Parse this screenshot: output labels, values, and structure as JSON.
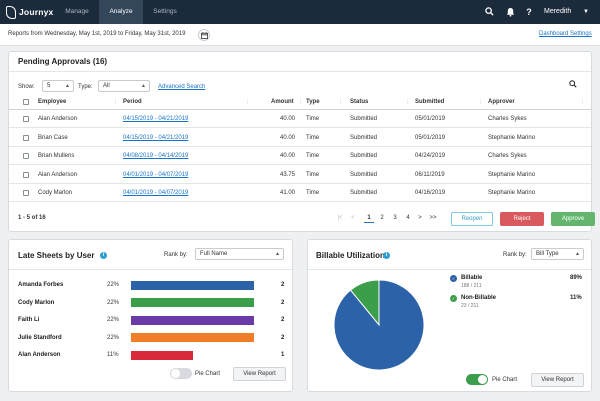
{
  "nav": {
    "brand": "Journyx",
    "items": [
      {
        "label": "Manage",
        "active": false
      },
      {
        "label": "Analyze",
        "active": true
      },
      {
        "label": "Settings",
        "active": false
      }
    ],
    "user_name": "Meredith",
    "icons": [
      "search-icon",
      "bell-icon",
      "help-icon"
    ]
  },
  "report": {
    "range_text": "Reports from Wednesday, May 1st, 2019 to Friday, May 31st, 2019",
    "dashboard_settings": "Dashboard Settings"
  },
  "pending": {
    "title": "Pending Approvals (16)",
    "show_label": "Show:",
    "show_value": "5",
    "type_label": "Type:",
    "type_value": "All",
    "advanced_search": "Advanced Search",
    "columns": [
      "Employee",
      "Period",
      "Amount",
      "Type",
      "Status",
      "Submitted",
      "Approver"
    ],
    "rows": [
      {
        "employee": "Alan Anderson",
        "period": "04/15/2019 - 04/21/2019",
        "amount": "40.00",
        "type": "Time",
        "status": "Submitted",
        "submitted": "05/01/2019",
        "approver": "Charles Sykes"
      },
      {
        "employee": "Brian Case",
        "period": "04/15/2019 - 04/21/2019",
        "amount": "40.00",
        "type": "Time",
        "status": "Submitted",
        "submitted": "05/01/2019",
        "approver": "Stephanie Marino"
      },
      {
        "employee": "Brian Mullens",
        "period": "04/08/2019 - 04/14/2019",
        "amount": "40.00",
        "type": "Time",
        "status": "Submitted",
        "submitted": "04/24/2019",
        "approver": "Charles Sykes"
      },
      {
        "employee": "Alan Anderson",
        "period": "04/01/2019 - 04/07/2019",
        "amount": "43.75",
        "type": "Time",
        "status": "Submitted",
        "submitted": "06/11/2019",
        "approver": "Stephanie Marino"
      },
      {
        "employee": "Cody Marlon",
        "period": "04/01/2019 - 04/07/2019",
        "amount": "41.00",
        "type": "Time",
        "status": "Submitted",
        "submitted": "04/16/2019",
        "approver": "Stephanie Marino"
      }
    ],
    "pager_info": "1 - 5 of 16",
    "pages": [
      "1",
      "2",
      "3",
      "4"
    ],
    "current_page": "1",
    "pager_first": "|<",
    "pager_prev": "<",
    "pager_next": ">",
    "pager_last": ">>",
    "reopen_label": "Reopen",
    "reject_label": "Reject",
    "approve_label": "Approve"
  },
  "late": {
    "title": "Late Sheets by User",
    "rank_label": "Rank by:",
    "rank_value": "Full Name",
    "users": [
      {
        "name": "Amanda Forbes",
        "pct": "22%",
        "fraction": 1.0,
        "count": "2",
        "color": "#2b62a8"
      },
      {
        "name": "Cody Marlon",
        "pct": "22%",
        "fraction": 1.0,
        "count": "2",
        "color": "#3a9e4a"
      },
      {
        "name": "Faith Li",
        "pct": "22%",
        "fraction": 1.0,
        "count": "2",
        "color": "#6a3aa6"
      },
      {
        "name": "Julie Standford",
        "pct": "22%",
        "fraction": 1.0,
        "count": "2",
        "color": "#f07d28"
      },
      {
        "name": "Alan Anderson",
        "pct": "11%",
        "fraction": 0.5,
        "count": "1",
        "color": "#d8283a"
      }
    ],
    "pie_toggle_label": "Pie Chart",
    "pie_toggle_on": false,
    "view_report": "View Report"
  },
  "billable": {
    "title": "Billable Utilization",
    "rank_label": "Rank by:",
    "rank_value": "Bill Type",
    "pie_toggle_label": "Pie Chart",
    "pie_toggle_on": true,
    "view_report": "View Report"
  },
  "chart_data": {
    "type": "pie",
    "slices": [
      {
        "name": "Billable",
        "detail": "188 / 211",
        "value": 188,
        "pct": "89%",
        "color": "#2b62a8"
      },
      {
        "name": "Non-Billable",
        "detail": "23 / 211",
        "value": 23,
        "pct": "11%",
        "color": "#3a9e4a"
      }
    ]
  },
  "colors": {
    "nav_bg": "#1b2b3c",
    "link": "#1a73c8",
    "reject": "#d85a5e",
    "approve": "#63b56d",
    "reopen": "#3a9fc6",
    "info": "#2e9fd1"
  }
}
